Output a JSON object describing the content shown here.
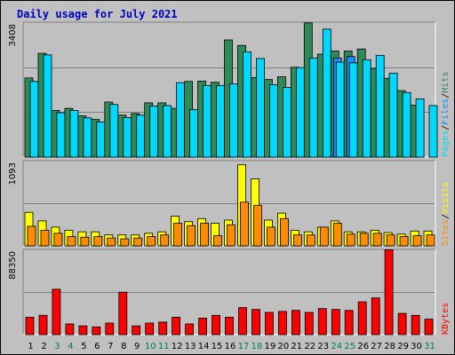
{
  "chart_data": {
    "title": "Daily usage for July 2021",
    "type": "bar",
    "days": [
      "1",
      "2",
      "3",
      "4",
      "5",
      "6",
      "7",
      "8",
      "9",
      "10",
      "11",
      "12",
      "13",
      "14",
      "15",
      "16",
      "17",
      "18",
      "19",
      "20",
      "21",
      "22",
      "23",
      "24",
      "25",
      "26",
      "27",
      "28",
      "29",
      "30",
      "31"
    ],
    "weekend_days": [
      "3",
      "4",
      "10",
      "11",
      "17",
      "18",
      "24",
      "25",
      "31"
    ],
    "panels": [
      {
        "id": "hits",
        "max_label": "3408",
        "ylim": [
          0,
          3408
        ],
        "legend": [
          "Pages",
          "Files",
          "Hits"
        ],
        "series": [
          {
            "name": "Hits",
            "color": "#2e8b57",
            "values": [
              2000,
              2620,
              1180,
              1230,
              1040,
              950,
              1390,
              1060,
              1100,
              1370,
              1370,
              1230,
              1910,
              1920,
              1890,
              2960,
              2820,
              2010,
              1960,
              2030,
              2270,
              3390,
              2600,
              2680,
              2680,
              2730,
              2240,
              1990,
              1680,
              1310,
              0
            ]
          },
          {
            "name": "Files",
            "color": "#1a8cff",
            "values": [
              0,
              0,
              0,
              0,
              0,
              0,
              0,
              0,
              0,
              0,
              0,
              0,
              0,
              0,
              0,
              0,
              0,
              0,
              0,
              0,
              0,
              0,
              0,
              2500,
              2540,
              0,
              0,
              0,
              0,
              0,
              0
            ]
          },
          {
            "name": "Pages",
            "color": "#00d8ff",
            "values": [
              1910,
              2580,
              1120,
              1180,
              990,
              890,
              1330,
              1000,
              1060,
              1290,
              1300,
              1880,
              1200,
              1810,
              1810,
              1850,
              2660,
              2490,
              1830,
              1760,
              2260,
              2500,
              3230,
              2400,
              2380,
              2460,
              2570,
              2120,
              1630,
              1470,
              1300
            ]
          }
        ]
      },
      {
        "id": "visits",
        "max_label": "1093",
        "ylim": [
          0,
          1093
        ],
        "legend": [
          "Sites",
          "Visits"
        ],
        "series": [
          {
            "name": "Visits",
            "color": "#ffff00",
            "values": [
              430,
              320,
              240,
              200,
              180,
              180,
              140,
              140,
              140,
              160,
              180,
              380,
              310,
              350,
              290,
              330,
              1040,
              860,
              330,
              420,
              200,
              180,
              240,
              320,
              180,
              180,
              200,
              170,
              150,
              190,
              190
            ]
          },
          {
            "name": "Sites",
            "color": "#ff8c00",
            "values": [
              250,
              200,
              160,
              120,
              110,
              120,
              100,
              90,
              100,
              120,
              140,
              290,
              260,
              290,
              130,
              270,
              560,
              520,
              240,
              350,
              140,
              140,
              240,
              290,
              150,
              160,
              160,
              140,
              120,
              130,
              140
            ]
          }
        ]
      },
      {
        "id": "kbytes",
        "max_label": "88350",
        "ylim": [
          0,
          88350
        ],
        "legend": [
          "KBytes"
        ],
        "series": [
          {
            "name": "KBytes",
            "color": "#ff0000",
            "values": [
              18000,
              20000,
              47000,
              11000,
              9000,
              8000,
              12000,
              44000,
              9000,
              12000,
              13000,
              18000,
              11000,
              17000,
              20000,
              18000,
              28000,
              26000,
              23000,
              24000,
              25000,
              23000,
              27000,
              26000,
              25000,
              34000,
              38000,
              88000,
              22000,
              20000,
              16000
            ]
          }
        ]
      }
    ],
    "colors": {
      "background": "#c0c0c0",
      "plot": "#c0c0c0",
      "gridline": "#808080",
      "title": "#0000c0",
      "weekday_label": "#000000",
      "weekend_label": "#00805c"
    }
  }
}
